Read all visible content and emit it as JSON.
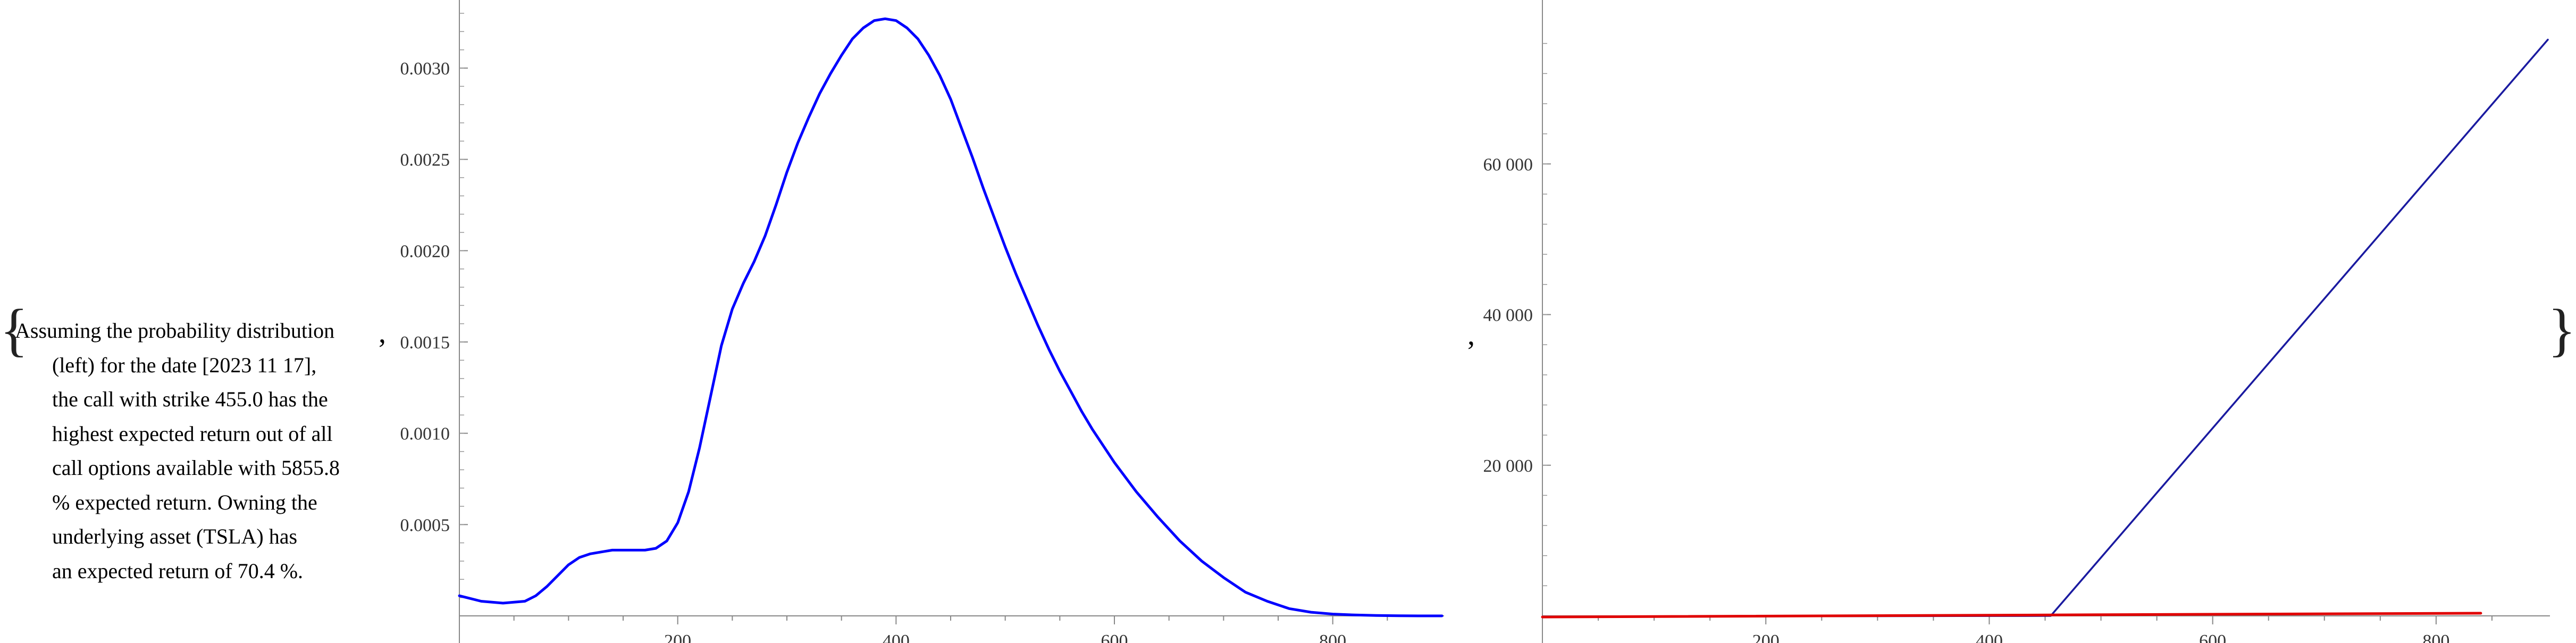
{
  "caption": {
    "lines": [
      "Assuming the probability distribution",
      "(left) for the date [2023 11 17],",
      "the call with strike 455.0 has the",
      "highest expected return out of all",
      "call options available with 5855.8",
      "% expected return. Owning the",
      "underlying asset (TSLA) has",
      "an expected return of 70.4 %."
    ]
  },
  "punctuation": {
    "open_brace": "{",
    "close_brace": "}",
    "comma": ","
  },
  "chart_data": [
    {
      "type": "line",
      "title": "",
      "xlabel": "",
      "ylabel": "",
      "xlim": [
        0,
        900
      ],
      "ylim": [
        0,
        0.0033
      ],
      "x_ticks": [
        200,
        400,
        600,
        800
      ],
      "x_tick_labels": [
        "200",
        "400",
        "600",
        "800"
      ],
      "y_ticks": [
        0.0005,
        0.001,
        0.0015,
        0.002,
        0.0025,
        0.003
      ],
      "y_tick_labels": [
        "0.0005",
        "0.0010",
        "0.0015",
        "0.0020",
        "0.0025",
        "0.0030"
      ],
      "series": [
        {
          "color": "#0000ff",
          "x": [
            0,
            20,
            40,
            60,
            70,
            80,
            90,
            100,
            110,
            120,
            130,
            140,
            150,
            160,
            170,
            180,
            190,
            200,
            210,
            220,
            230,
            240,
            250,
            260,
            270,
            280,
            290,
            300,
            310,
            320,
            330,
            340,
            350,
            360,
            370,
            380,
            390,
            400,
            410,
            420,
            430,
            440,
            450,
            460,
            470,
            480,
            490,
            500,
            510,
            520,
            530,
            540,
            550,
            560,
            570,
            580,
            590,
            600,
            620,
            640,
            660,
            680,
            700,
            720,
            740,
            760,
            780,
            800,
            820,
            840,
            860,
            880,
            900
          ],
          "y": [
            0.00011,
            8e-05,
            7e-05,
            8e-05,
            0.00011,
            0.00016,
            0.00022,
            0.00028,
            0.00032,
            0.00034,
            0.00035,
            0.00036,
            0.00036,
            0.00036,
            0.00036,
            0.00037,
            0.00041,
            0.00051,
            0.00068,
            0.00092,
            0.0012,
            0.00148,
            0.00168,
            0.00182,
            0.00194,
            0.00208,
            0.00225,
            0.00243,
            0.00259,
            0.00273,
            0.00286,
            0.00297,
            0.00307,
            0.00316,
            0.00322,
            0.00326,
            0.00327,
            0.00326,
            0.00322,
            0.00316,
            0.00307,
            0.00296,
            0.00283,
            0.00267,
            0.00251,
            0.00234,
            0.00218,
            0.00202,
            0.00187,
            0.00173,
            0.00159,
            0.00146,
            0.00134,
            0.00123,
            0.00112,
            0.00102,
            0.00093,
            0.00084,
            0.00068,
            0.00054,
            0.00041,
            0.0003,
            0.00021,
            0.00013,
            8e-05,
            4e-05,
            2e-05,
            1e-05,
            5e-06,
            2e-06,
            1e-06,
            0,
            0
          ]
        }
      ]
    },
    {
      "type": "line",
      "title": "",
      "xlabel": "",
      "ylabel": "",
      "xlim": [
        0,
        900
      ],
      "ylim": [
        0,
        80000
      ],
      "x_ticks": [
        200,
        400,
        600,
        800
      ],
      "x_tick_labels": [
        "200",
        "400",
        "600",
        "800"
      ],
      "y_ticks": [
        20000,
        40000,
        60000
      ],
      "y_tick_labels": [
        "20 000",
        "40 000",
        "60 000"
      ],
      "series": [
        {
          "color": "#1a1aa0",
          "x": [
            0,
            455,
            900
          ],
          "y": [
            -100,
            0,
            76500
          ]
        },
        {
          "color": "#e00000",
          "x": [
            0,
            840
          ],
          "y": [
            -150,
            350
          ]
        }
      ]
    }
  ]
}
